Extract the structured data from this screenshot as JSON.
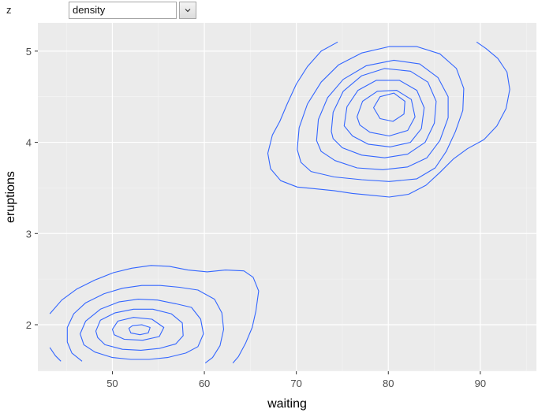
{
  "control": {
    "label": "z",
    "selected": "density"
  },
  "chart_data": {
    "type": "contour",
    "title": "",
    "xlabel": "waiting",
    "ylabel": "eruptions",
    "xlim": [
      41.9,
      96.1
    ],
    "ylim": [
      1.49,
      5.31
    ],
    "xticks": [
      50,
      60,
      70,
      80,
      90
    ],
    "yticks": [
      2,
      3,
      4,
      5
    ],
    "grid": true,
    "legend": "none",
    "colors": {
      "panel": "#EBEBEB",
      "grid_major": "#FFFFFF",
      "grid_minor": "#F5F5F5",
      "line": "#3366FF",
      "axis_text": "#4D4D4D",
      "axis_title": "#000000"
    },
    "contours": [
      {
        "level": 1,
        "points": [
          [
            43.2,
            2.12
          ],
          [
            44.5,
            2.27
          ],
          [
            46.1,
            2.39
          ],
          [
            48.1,
            2.49
          ],
          [
            50.1,
            2.57
          ],
          [
            52.1,
            2.62
          ],
          [
            54.2,
            2.65
          ],
          [
            56.2,
            2.64
          ],
          [
            58.2,
            2.6
          ],
          [
            60.3,
            2.58
          ],
          [
            62.3,
            2.6
          ],
          [
            64.3,
            2.59
          ],
          [
            65.3,
            2.52
          ],
          [
            65.9,
            2.37
          ],
          [
            65.6,
            2.15
          ],
          [
            65.2,
            1.97
          ],
          [
            64.5,
            1.8
          ],
          [
            63.7,
            1.65
          ],
          [
            63.1,
            1.58
          ]
        ],
        "closed": false
      },
      {
        "level": 1,
        "points": [
          [
            43.2,
            1.75
          ],
          [
            43.8,
            1.66
          ],
          [
            44.4,
            1.6
          ]
        ],
        "closed": false
      },
      {
        "level": 2,
        "points": [
          [
            46.7,
            1.6
          ],
          [
            45.6,
            1.69
          ],
          [
            45.1,
            1.81
          ],
          [
            45.1,
            1.97
          ],
          [
            45.8,
            2.12
          ],
          [
            47.1,
            2.24
          ],
          [
            49.1,
            2.34
          ],
          [
            51.1,
            2.4
          ],
          [
            53.2,
            2.43
          ],
          [
            55.2,
            2.43
          ],
          [
            57.3,
            2.41
          ],
          [
            59.3,
            2.38
          ],
          [
            61.1,
            2.28
          ],
          [
            61.9,
            2.13
          ],
          [
            62.1,
            1.95
          ],
          [
            61.7,
            1.77
          ],
          [
            60.9,
            1.64
          ],
          [
            60.1,
            1.58
          ]
        ],
        "closed": false
      },
      {
        "level": 3,
        "points": [
          [
            46.5,
            1.9
          ],
          [
            47.1,
            2.04
          ],
          [
            48.7,
            2.17
          ],
          [
            50.7,
            2.25
          ],
          [
            52.8,
            2.28
          ],
          [
            54.9,
            2.27
          ],
          [
            56.9,
            2.23
          ],
          [
            58.6,
            2.19
          ],
          [
            59.6,
            2.06
          ],
          [
            59.9,
            1.9
          ],
          [
            59.3,
            1.76
          ],
          [
            58.0,
            1.69
          ],
          [
            56.0,
            1.64
          ],
          [
            54.0,
            1.62
          ],
          [
            52.0,
            1.62
          ],
          [
            50.0,
            1.64
          ],
          [
            48.1,
            1.7
          ],
          [
            46.9,
            1.78
          ],
          [
            46.5,
            1.9
          ]
        ],
        "closed": true
      },
      {
        "level": 4,
        "points": [
          [
            48.2,
            1.93
          ],
          [
            48.7,
            2.05
          ],
          [
            50.3,
            2.13
          ],
          [
            52.3,
            2.17
          ],
          [
            54.4,
            2.17
          ],
          [
            56.4,
            2.12
          ],
          [
            57.6,
            2.02
          ],
          [
            57.7,
            1.88
          ],
          [
            56.9,
            1.79
          ],
          [
            55.1,
            1.74
          ],
          [
            53.1,
            1.72
          ],
          [
            51.1,
            1.73
          ],
          [
            49.2,
            1.78
          ],
          [
            48.4,
            1.86
          ],
          [
            48.2,
            1.93
          ]
        ],
        "closed": true
      },
      {
        "level": 5,
        "points": [
          [
            50.0,
            1.95
          ],
          [
            50.6,
            2.04
          ],
          [
            52.3,
            2.08
          ],
          [
            54.3,
            2.06
          ],
          [
            55.6,
            1.97
          ],
          [
            55.1,
            1.87
          ],
          [
            53.3,
            1.83
          ],
          [
            51.3,
            1.84
          ],
          [
            50.2,
            1.89
          ],
          [
            50.0,
            1.95
          ]
        ],
        "closed": true
      },
      {
        "level": 6,
        "points": [
          [
            51.8,
            1.96
          ],
          [
            52.2,
            1.99
          ],
          [
            53.2,
            2.0
          ],
          [
            54.1,
            1.97
          ],
          [
            53.9,
            1.91
          ],
          [
            53.0,
            1.89
          ],
          [
            52.0,
            1.91
          ],
          [
            51.8,
            1.96
          ]
        ],
        "closed": true
      },
      {
        "level": 1,
        "points": [
          [
            74.5,
            5.1
          ],
          [
            72.7,
            5.0
          ],
          [
            71.2,
            4.83
          ],
          [
            70.0,
            4.64
          ],
          [
            69.0,
            4.42
          ],
          [
            68.2,
            4.23
          ],
          [
            67.4,
            4.08
          ],
          [
            66.9,
            3.88
          ],
          [
            67.2,
            3.71
          ],
          [
            68.3,
            3.58
          ],
          [
            70.1,
            3.51
          ],
          [
            72.1,
            3.49
          ],
          [
            74.1,
            3.47
          ],
          [
            76.1,
            3.44
          ],
          [
            78.1,
            3.42
          ],
          [
            80.1,
            3.4
          ],
          [
            82.2,
            3.43
          ],
          [
            84.1,
            3.53
          ],
          [
            85.6,
            3.67
          ],
          [
            87.1,
            3.82
          ],
          [
            88.6,
            3.93
          ],
          [
            90.4,
            4.03
          ],
          [
            91.8,
            4.18
          ],
          [
            92.8,
            4.37
          ],
          [
            93.2,
            4.58
          ],
          [
            92.9,
            4.77
          ],
          [
            91.9,
            4.92
          ],
          [
            90.6,
            5.03
          ],
          [
            89.6,
            5.1
          ]
        ],
        "closed": false
      },
      {
        "level": 2,
        "points": [
          [
            70.1,
            3.92
          ],
          [
            70.3,
            4.16
          ],
          [
            71.2,
            4.42
          ],
          [
            72.7,
            4.66
          ],
          [
            74.6,
            4.85
          ],
          [
            77.1,
            4.98
          ],
          [
            80.1,
            5.05
          ],
          [
            83.1,
            5.05
          ],
          [
            85.6,
            4.97
          ],
          [
            87.4,
            4.81
          ],
          [
            88.2,
            4.59
          ],
          [
            88.1,
            4.35
          ],
          [
            87.3,
            4.12
          ],
          [
            86.3,
            3.9
          ],
          [
            85.1,
            3.72
          ],
          [
            83.1,
            3.6
          ],
          [
            80.1,
            3.57
          ],
          [
            77.1,
            3.59
          ],
          [
            74.1,
            3.62
          ],
          [
            71.6,
            3.68
          ],
          [
            70.5,
            3.78
          ],
          [
            70.1,
            3.92
          ]
        ],
        "closed": true
      },
      {
        "level": 3,
        "points": [
          [
            72.2,
            4.02
          ],
          [
            72.4,
            4.25
          ],
          [
            73.4,
            4.49
          ],
          [
            75.1,
            4.69
          ],
          [
            77.6,
            4.84
          ],
          [
            80.6,
            4.9
          ],
          [
            83.4,
            4.86
          ],
          [
            85.4,
            4.71
          ],
          [
            86.5,
            4.5
          ],
          [
            86.5,
            4.27
          ],
          [
            85.6,
            4.02
          ],
          [
            84.2,
            3.83
          ],
          [
            82.1,
            3.73
          ],
          [
            79.4,
            3.7
          ],
          [
            76.6,
            3.72
          ],
          [
            74.2,
            3.8
          ],
          [
            72.7,
            3.9
          ],
          [
            72.2,
            4.02
          ]
        ],
        "closed": true
      },
      {
        "level": 4,
        "points": [
          [
            73.8,
            4.12
          ],
          [
            74.0,
            4.33
          ],
          [
            75.1,
            4.56
          ],
          [
            77.1,
            4.73
          ],
          [
            79.6,
            4.81
          ],
          [
            82.4,
            4.78
          ],
          [
            84.3,
            4.66
          ],
          [
            85.2,
            4.45
          ],
          [
            85.0,
            4.21
          ],
          [
            84.0,
            4.0
          ],
          [
            82.1,
            3.87
          ],
          [
            79.6,
            3.83
          ],
          [
            77.1,
            3.86
          ],
          [
            75.0,
            3.94
          ],
          [
            74.0,
            4.04
          ],
          [
            73.8,
            4.12
          ]
        ],
        "closed": true
      },
      {
        "level": 5,
        "points": [
          [
            75.2,
            4.18
          ],
          [
            75.5,
            4.39
          ],
          [
            76.7,
            4.57
          ],
          [
            78.7,
            4.68
          ],
          [
            81.2,
            4.68
          ],
          [
            83.1,
            4.57
          ],
          [
            83.9,
            4.38
          ],
          [
            83.6,
            4.15
          ],
          [
            82.4,
            4.0
          ],
          [
            80.2,
            3.95
          ],
          [
            77.8,
            3.98
          ],
          [
            76.1,
            4.07
          ],
          [
            75.2,
            4.18
          ]
        ],
        "closed": true
      },
      {
        "level": 6,
        "points": [
          [
            76.6,
            4.28
          ],
          [
            77.2,
            4.45
          ],
          [
            78.8,
            4.56
          ],
          [
            80.9,
            4.57
          ],
          [
            82.5,
            4.47
          ],
          [
            82.9,
            4.28
          ],
          [
            82.1,
            4.13
          ],
          [
            80.1,
            4.07
          ],
          [
            78.0,
            4.11
          ],
          [
            76.9,
            4.19
          ],
          [
            76.6,
            4.28
          ]
        ],
        "closed": true
      },
      {
        "level": 7,
        "points": [
          [
            78.4,
            4.38
          ],
          [
            79.1,
            4.5
          ],
          [
            80.6,
            4.54
          ],
          [
            81.8,
            4.45
          ],
          [
            81.7,
            4.31
          ],
          [
            80.5,
            4.23
          ],
          [
            79.1,
            4.26
          ],
          [
            78.4,
            4.38
          ]
        ],
        "closed": true
      }
    ]
  }
}
